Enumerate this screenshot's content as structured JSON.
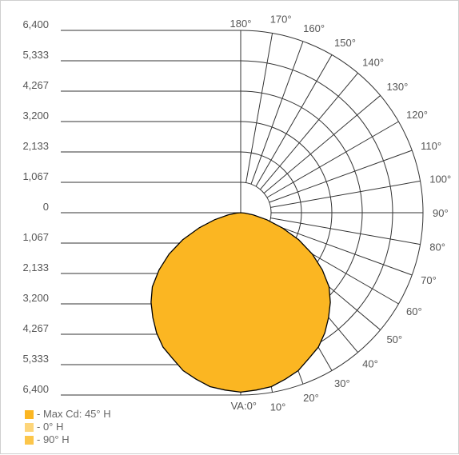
{
  "chart_data": {
    "type": "polar",
    "angle_unit": "degrees",
    "radial_ticks": [
      "0",
      "1,067",
      "2,133",
      "3,200",
      "4,267",
      "5,333",
      "6,400"
    ],
    "radial_max": 6400,
    "angle_labels": [
      "VA:0°",
      "10°",
      "20°",
      "30°",
      "40°",
      "50°",
      "60°",
      "70°",
      "80°",
      "90°",
      "100°",
      "110°",
      "120°",
      "130°",
      "140°",
      "150°",
      "160°",
      "170°",
      "180°"
    ],
    "angles": [
      0,
      10,
      20,
      30,
      40,
      50,
      60,
      70,
      80,
      90,
      100,
      110,
      120,
      130,
      140,
      150,
      160,
      170,
      180
    ],
    "series": [
      {
        "name": "- Max Cd: 45° H",
        "color": "#fbb622",
        "angles": [
          0,
          5,
          10,
          15,
          20,
          25,
          30,
          35,
          40,
          45,
          50,
          55,
          60,
          65,
          70,
          75,
          80,
          85,
          90
        ],
        "values": [
          6300,
          6250,
          6200,
          6050,
          5900,
          5650,
          5450,
          5150,
          4800,
          4450,
          4050,
          3500,
          2900,
          2250,
          1550,
          950,
          450,
          150,
          0
        ]
      },
      {
        "name": "- 0° H",
        "color": "#fdd57a",
        "angles": [],
        "values": []
      },
      {
        "name": "- 90° H",
        "color": "#fcc64a",
        "angles": [],
        "values": []
      }
    ],
    "legend_position": "bottom-left",
    "grid": true
  }
}
